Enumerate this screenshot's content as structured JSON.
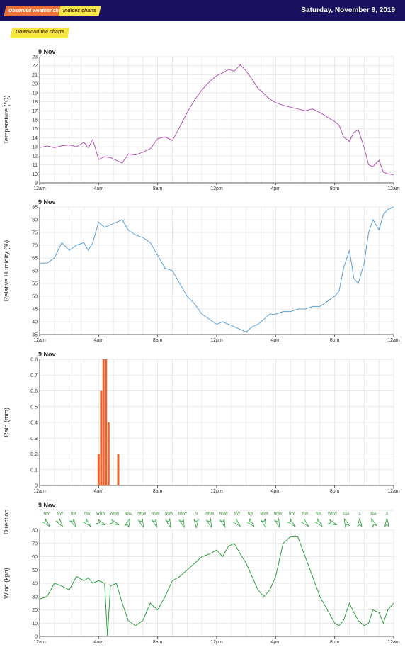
{
  "header": {
    "tab_observed": "Observed weather charts",
    "tab_indices": "Indices charts",
    "date": "Saturday, November 9, 2019"
  },
  "download_label": "Download the charts",
  "colors": {
    "header_bg": "#1a1060",
    "temperature": "#b455b4",
    "humidity": "#5a9fd6",
    "rain": "#e8622e",
    "wind": "#2e9e3e"
  },
  "chart_data": [
    {
      "type": "line",
      "day_label": "9 Nov",
      "ylabel": "Temperature (°C)",
      "ylim": [
        9,
        23
      ],
      "yticks": [
        9,
        10,
        11,
        12,
        13,
        14,
        15,
        16,
        17,
        18,
        19,
        20,
        21,
        22,
        23
      ],
      "xlim": [
        0,
        24
      ],
      "xticks": [
        0,
        4,
        8,
        12,
        16,
        20,
        24
      ],
      "xtick_labels": [
        "12am",
        "4am",
        "8am",
        "12pm",
        "4pm",
        "8pm",
        "12am"
      ],
      "x": [
        0,
        0.5,
        1,
        1.5,
        2,
        2.5,
        3,
        3.3,
        3.6,
        4,
        4.4,
        4.8,
        5.2,
        5.6,
        6,
        6.5,
        7,
        7.5,
        8,
        8.5,
        9,
        9.5,
        10,
        10.5,
        11,
        11.5,
        12,
        12.4,
        12.8,
        13.2,
        13.6,
        14,
        14.4,
        14.8,
        15.2,
        15.6,
        16,
        16.5,
        17,
        17.5,
        18,
        18.5,
        19,
        19.5,
        20,
        20.3,
        20.6,
        21,
        21.3,
        21.6,
        22,
        22.3,
        22.6,
        23,
        23.3,
        23.6,
        24
      ],
      "values": [
        12.9,
        13.1,
        12.9,
        13.1,
        13.2,
        13.0,
        13.5,
        12.9,
        13.8,
        11.6,
        11.9,
        11.8,
        11.5,
        11.2,
        12.2,
        12.1,
        12.4,
        12.8,
        13.9,
        14.1,
        13.7,
        15.2,
        16.8,
        18.2,
        19.3,
        20.2,
        20.9,
        21.2,
        21.6,
        21.4,
        22.1,
        21.4,
        20.5,
        19.5,
        18.9,
        18.3,
        17.9,
        17.6,
        17.4,
        17.2,
        17.0,
        17.2,
        16.8,
        16.3,
        15.8,
        15.4,
        14.1,
        13.6,
        14.6,
        14.9,
        12.9,
        11.0,
        10.8,
        11.5,
        10.2,
        10.0,
        9.9
      ]
    },
    {
      "type": "line",
      "day_label": "9 Nov",
      "ylabel": "Relative Humidity (%)",
      "ylim": [
        35,
        85
      ],
      "yticks": [
        35,
        40,
        45,
        50,
        55,
        60,
        65,
        70,
        75,
        80,
        85
      ],
      "xlim": [
        0,
        24
      ],
      "xticks": [
        0,
        4,
        8,
        12,
        16,
        20,
        24
      ],
      "xtick_labels": [
        "12am",
        "4am",
        "8am",
        "12pm",
        "4pm",
        "8pm",
        "12am"
      ],
      "x": [
        0,
        0.5,
        1,
        1.5,
        2,
        2.5,
        3,
        3.3,
        3.6,
        4,
        4.4,
        4.8,
        5.2,
        5.6,
        6,
        6.5,
        7,
        7.5,
        8,
        8.5,
        9,
        9.5,
        10,
        10.5,
        11,
        11.5,
        12,
        12.4,
        12.8,
        13.2,
        13.6,
        14,
        14.4,
        14.8,
        15.2,
        15.6,
        16,
        16.5,
        17,
        17.5,
        18,
        18.5,
        19,
        19.5,
        20,
        20.3,
        20.6,
        21,
        21.3,
        21.6,
        22,
        22.3,
        22.6,
        23,
        23.3,
        23.6,
        24
      ],
      "values": [
        63,
        63,
        65,
        71,
        68,
        70,
        71,
        68,
        71,
        79,
        77,
        78,
        79,
        80,
        76,
        74,
        73,
        71,
        66,
        61,
        60,
        55,
        50,
        47,
        43,
        41,
        39,
        40,
        39,
        38,
        37,
        36,
        38,
        39,
        41,
        43,
        43,
        44,
        44,
        45,
        45,
        46,
        46,
        48,
        50,
        52,
        61,
        68,
        57,
        55,
        63,
        75,
        80,
        76,
        82,
        84,
        85
      ]
    },
    {
      "type": "bar",
      "day_label": "9 Nov",
      "ylabel": "Rain (mm)",
      "ylim": [
        0,
        0.8
      ],
      "yticks": [
        0,
        0.1,
        0.2,
        0.3,
        0.4,
        0.5,
        0.6,
        0.7,
        0.8
      ],
      "xlim": [
        0,
        24
      ],
      "xticks": [
        0,
        4,
        8,
        12,
        16,
        20,
        24
      ],
      "xtick_labels": [
        "12am",
        "4am",
        "8am",
        "12pm",
        "4pm",
        "8pm",
        "12am"
      ],
      "x": [
        4.0,
        4.17,
        4.33,
        4.5,
        4.67,
        5.33
      ],
      "values": [
        0.2,
        0.6,
        0.8,
        0.8,
        0.4,
        0.2
      ]
    },
    {
      "type": "line",
      "day_label": "9 Nov",
      "ylabel": "Wind (kph)",
      "direction_label": "Direction",
      "ylim": [
        0,
        80
      ],
      "yticks": [
        0,
        10,
        20,
        30,
        40,
        50,
        60,
        70,
        80
      ],
      "xlim": [
        0,
        24
      ],
      "xticks": [
        0,
        4,
        8,
        12,
        16,
        20,
        24
      ],
      "xtick_labels": [
        "12am",
        "4am",
        "8am",
        "12pm",
        "4pm",
        "8pm",
        "12am"
      ],
      "x": [
        0,
        0.5,
        1,
        1.5,
        2,
        2.5,
        3,
        3.3,
        3.6,
        4,
        4.4,
        4.6,
        4.8,
        5.2,
        5.6,
        6,
        6.5,
        7,
        7.5,
        8,
        8.5,
        9,
        9.5,
        10,
        10.5,
        11,
        11.5,
        12,
        12.4,
        12.8,
        13.2,
        13.6,
        14,
        14.4,
        14.8,
        15.2,
        15.6,
        16,
        16.5,
        17,
        17.5,
        18,
        18.5,
        19,
        19.5,
        20,
        20.3,
        20.6,
        21,
        21.3,
        21.6,
        22,
        22.3,
        22.6,
        23,
        23.3,
        23.6,
        24
      ],
      "values": [
        28,
        30,
        40,
        38,
        35,
        45,
        42,
        44,
        40,
        42,
        40,
        0,
        38,
        40,
        25,
        12,
        8,
        12,
        25,
        20,
        30,
        42,
        45,
        50,
        55,
        60,
        62,
        65,
        60,
        68,
        70,
        62,
        55,
        45,
        35,
        30,
        35,
        45,
        70,
        75,
        75,
        60,
        45,
        30,
        20,
        10,
        8,
        12,
        25,
        18,
        12,
        8,
        10,
        20,
        18,
        10,
        20,
        25
      ],
      "directions": [
        "NW",
        "NW",
        "NW",
        "NW",
        "WNW",
        "WNW",
        "NNE",
        "NNW",
        "NNW",
        "NNW",
        "NNW",
        "N",
        "NNW",
        "NNW",
        "NW",
        "NW",
        "NNW",
        "NNW",
        "NW",
        "NW",
        "NW",
        "WNW",
        "SSE",
        "S",
        "SSE",
        "S"
      ],
      "direction_angles": [
        135,
        145,
        150,
        135,
        112,
        112,
        22,
        160,
        160,
        160,
        160,
        180,
        160,
        160,
        135,
        135,
        160,
        160,
        135,
        135,
        135,
        112,
        337,
        0,
        337,
        0
      ]
    }
  ]
}
